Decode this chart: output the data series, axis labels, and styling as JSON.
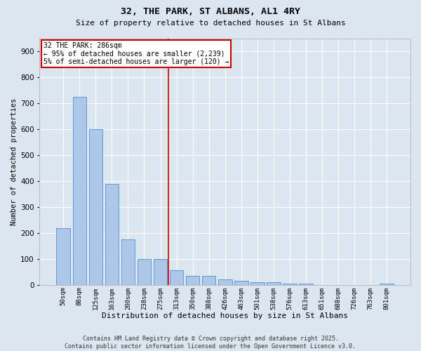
{
  "title": "32, THE PARK, ST ALBANS, AL1 4RY",
  "subtitle": "Size of property relative to detached houses in St Albans",
  "xlabel": "Distribution of detached houses by size in St Albans",
  "ylabel": "Number of detached properties",
  "footer_line1": "Contains HM Land Registry data © Crown copyright and database right 2025.",
  "footer_line2": "Contains public sector information licensed under the Open Government Licence v3.0.",
  "categories": [
    "50sqm",
    "88sqm",
    "125sqm",
    "163sqm",
    "200sqm",
    "238sqm",
    "275sqm",
    "313sqm",
    "350sqm",
    "388sqm",
    "426sqm",
    "463sqm",
    "501sqm",
    "538sqm",
    "576sqm",
    "613sqm",
    "651sqm",
    "688sqm",
    "726sqm",
    "763sqm",
    "801sqm"
  ],
  "values": [
    220,
    725,
    600,
    390,
    175,
    100,
    100,
    55,
    35,
    35,
    20,
    15,
    10,
    10,
    5,
    5,
    0,
    0,
    0,
    0,
    5
  ],
  "bar_color": "#aec6e8",
  "bar_edge_color": "#5b9bd5",
  "vline_x": 6.5,
  "vline_color": "#cc0000",
  "annotation_title": "32 THE PARK: 286sqm",
  "annotation_line1": "← 95% of detached houses are smaller (2,239)",
  "annotation_line2": "5% of semi-detached houses are larger (120) →",
  "annotation_box_color": "#cc0000",
  "ylim": [
    0,
    950
  ],
  "yticks": [
    0,
    100,
    200,
    300,
    400,
    500,
    600,
    700,
    800,
    900
  ],
  "background_color": "#dce6f1",
  "plot_background": "#dce6f1",
  "grid_color": "#ffffff"
}
